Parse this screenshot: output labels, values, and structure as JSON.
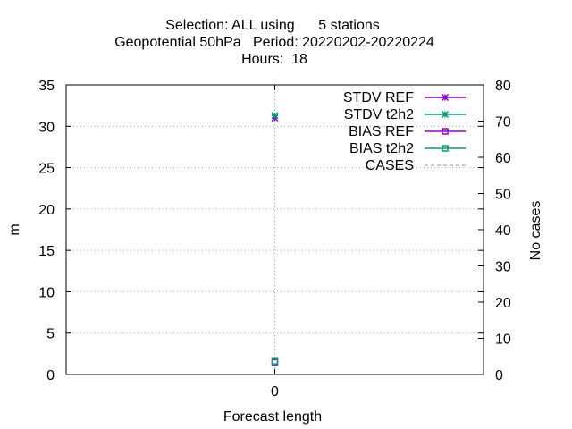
{
  "chart_data": {
    "type": "line",
    "title_lines": [
      "Selection: ALL using      5 stations",
      "Geopotential 50hPa   Period: 20220202-20220224",
      "Hours:  18"
    ],
    "xlabel": "Forecast length",
    "ylabel": "m",
    "y2label": "No cases",
    "x_categories": [
      "0"
    ],
    "xlim": [
      -1,
      1
    ],
    "ylim": [
      0,
      35
    ],
    "y2lim": [
      0,
      80
    ],
    "yticks": [
      0,
      5,
      10,
      15,
      20,
      25,
      30,
      35
    ],
    "y2ticks": [
      0,
      10,
      20,
      30,
      40,
      50,
      60,
      70,
      80
    ],
    "grid": true,
    "legend_position": "top-right",
    "series": [
      {
        "name": "STDV REF",
        "axis": "y1",
        "x": [
          0
        ],
        "values": [
          31.0
        ],
        "color": "#9400d3",
        "marker": "star"
      },
      {
        "name": "STDV t2h2",
        "axis": "y1",
        "x": [
          0
        ],
        "values": [
          31.3
        ],
        "color": "#009e73",
        "marker": "star"
      },
      {
        "name": "BIAS REF",
        "axis": "y1",
        "x": [
          0
        ],
        "values": [
          1.5
        ],
        "color": "#9400d3",
        "marker": "square"
      },
      {
        "name": "BIAS t2h2",
        "axis": "y1",
        "x": [
          0
        ],
        "values": [
          1.6
        ],
        "color": "#009e73",
        "marker": "square"
      },
      {
        "name": "CASES",
        "axis": "y2",
        "x": [
          0
        ],
        "values": [
          null
        ],
        "color": "#999999",
        "marker": "none",
        "dashed": true
      }
    ]
  }
}
